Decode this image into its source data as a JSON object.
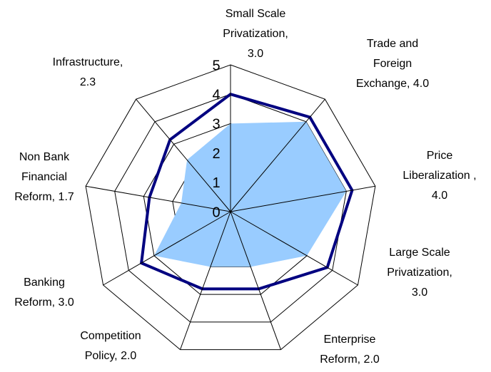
{
  "chart_data": {
    "type": "radar",
    "categories": [
      [
        "Small Scale",
        "Privatization,",
        "3.0"
      ],
      [
        "Trade and",
        "Foreign",
        "Exchange, 4.0"
      ],
      [
        "Price",
        "Liberalization ,",
        "4.0"
      ],
      [
        "Large Scale",
        "Privatization,",
        "3.0"
      ],
      [
        "Enterprise",
        "Reform, 2.0"
      ],
      [
        "Competition",
        "Policy, 2.0"
      ],
      [
        "Banking",
        "Reform, 3.0"
      ],
      [
        "Non Bank",
        "Financial",
        "Reform, 1.7"
      ],
      [
        "Infrastructure,",
        "2.3"
      ]
    ],
    "series": [
      {
        "color": "#99ccff",
        "fill": true,
        "values": [
          3.0,
          4.0,
          4.0,
          3.0,
          2.0,
          2.0,
          3.0,
          1.7,
          2.3
        ]
      },
      {
        "color": "#000080",
        "fill": false,
        "values": [
          4.0,
          4.2,
          4.2,
          3.8,
          2.8,
          2.8,
          3.5,
          2.8,
          3.2
        ]
      }
    ],
    "rlim": [
      0,
      5
    ],
    "rticks": [
      0,
      1,
      2,
      3,
      4,
      5
    ],
    "grid": true
  }
}
